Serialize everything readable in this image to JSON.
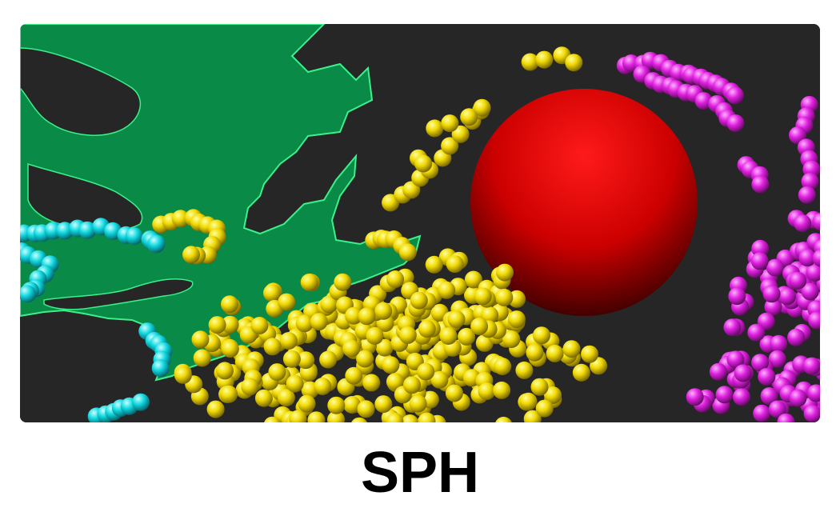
{
  "caption": "SPH",
  "scene": {
    "background_color": "#262626",
    "colors": {
      "leaf": "#0a8a47",
      "leaf_edge": "#3cf08a",
      "ball": "#ff0000",
      "particles_yellow": "#f0d800",
      "particles_cyan": "#10d8e0",
      "particles_magenta": "#e020e0"
    },
    "objects": [
      {
        "name": "green-leaf",
        "icon": "leaf-shape"
      },
      {
        "name": "red-sphere",
        "icon": "sphere"
      },
      {
        "name": "yellow-fluid-particles"
      },
      {
        "name": "cyan-fluid-particles"
      },
      {
        "name": "magenta-fluid-particles"
      }
    ]
  }
}
